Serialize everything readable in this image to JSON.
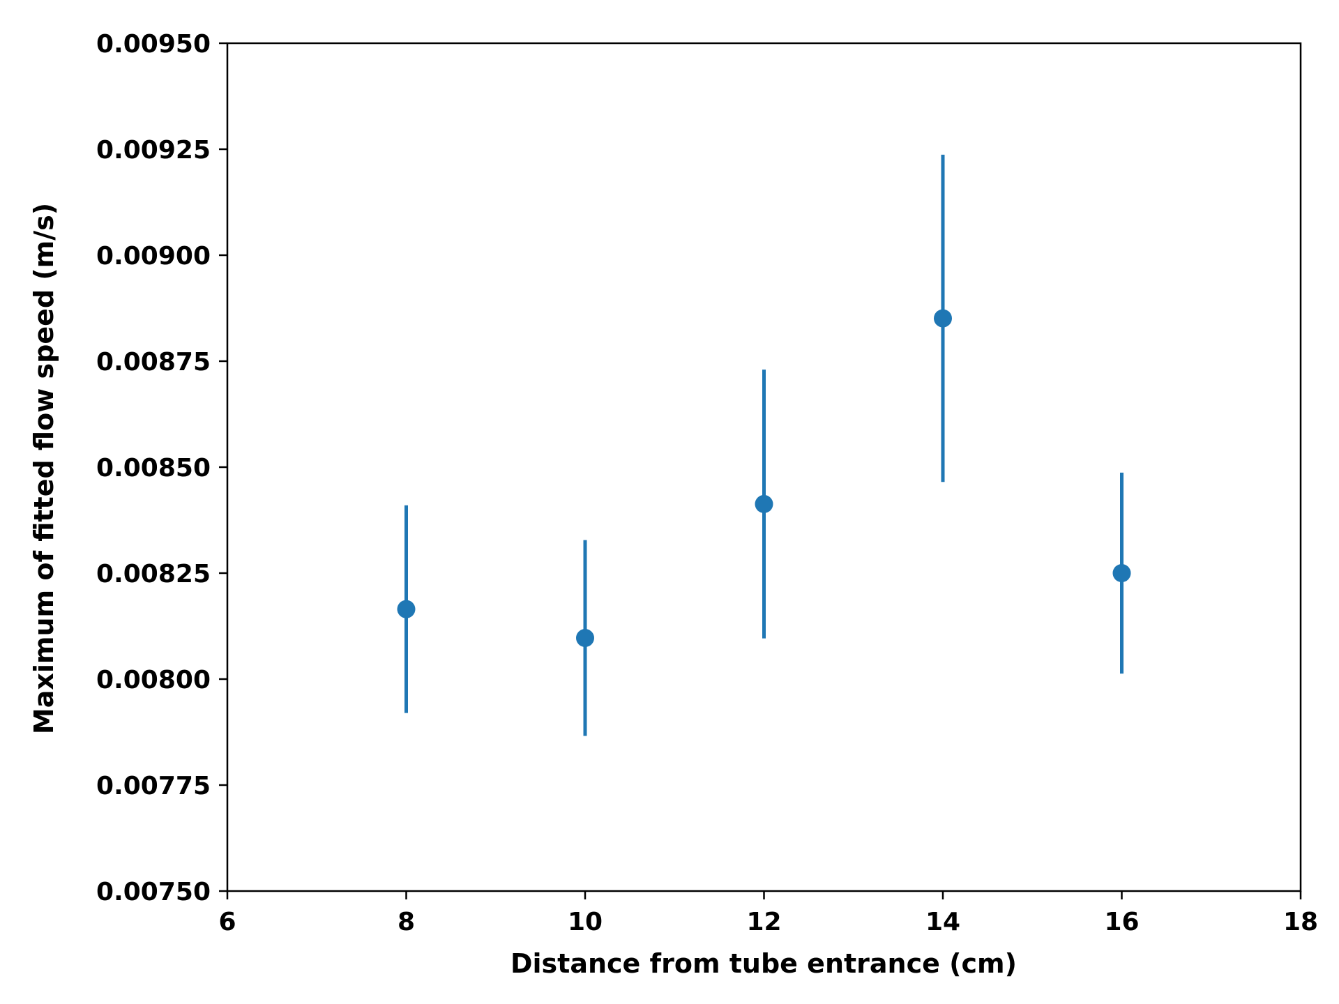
{
  "chart_data": {
    "type": "scatter",
    "title": "",
    "xlabel": "Distance from tube entrance (cm)",
    "ylabel": "Maximum of fitted flow speed (m/s)",
    "xlim": [
      6,
      18
    ],
    "ylim": [
      0.0075,
      0.0095
    ],
    "x_ticks": [
      6,
      8,
      10,
      12,
      14,
      16,
      18
    ],
    "x_tick_labels": [
      "6",
      "8",
      "10",
      "12",
      "14",
      "16",
      "18"
    ],
    "y_ticks": [
      0.0075,
      0.00775,
      0.008,
      0.00825,
      0.0085,
      0.00875,
      0.009,
      0.00925,
      0.0095
    ],
    "y_tick_labels": [
      "0.00750",
      "0.00775",
      "0.00800",
      "0.00825",
      "0.00850",
      "0.00875",
      "0.00900",
      "0.00925",
      "0.00950"
    ],
    "grid": false,
    "color": "#1f77b4",
    "series": [
      {
        "x": [
          8,
          10,
          12,
          14,
          16
        ],
        "y": [
          0.008165,
          0.008097,
          0.008413,
          0.008851,
          0.00825
        ],
        "yerr": [
          0.000245,
          0.000231,
          0.000317,
          0.000386,
          0.000237
        ]
      }
    ]
  }
}
